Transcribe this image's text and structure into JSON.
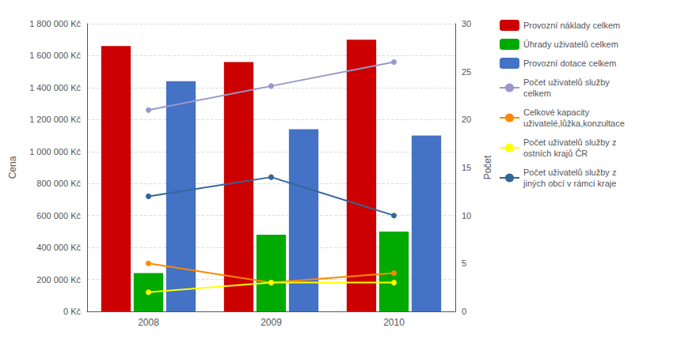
{
  "chart_data": {
    "type": "bar",
    "categories": [
      "2008",
      "2009",
      "2010"
    ],
    "ylabel": "Cena",
    "y2label": "Počet",
    "ylim": [
      0,
      1800000
    ],
    "yticks": [
      {
        "value": 0,
        "label": "0 Kč"
      },
      {
        "value": 200000,
        "label": "200 000 Kč"
      },
      {
        "value": 400000,
        "label": "400 000 Kč"
      },
      {
        "value": 600000,
        "label": "600 000 Kč"
      },
      {
        "value": 800000,
        "label": "800 000 Kč"
      },
      {
        "value": 1000000,
        "label": "1 000 000 Kč"
      },
      {
        "value": 1200000,
        "label": "1 200 000 Kč"
      },
      {
        "value": 1400000,
        "label": "1 400 000 Kč"
      },
      {
        "value": 1600000,
        "label": "1 600 000 Kč"
      },
      {
        "value": 1800000,
        "label": "1 800 000 Kč"
      }
    ],
    "y2lim": [
      0,
      30
    ],
    "y2ticks": [
      0,
      5,
      10,
      15,
      20,
      25,
      30
    ],
    "grid": true,
    "legend": "right",
    "series": [
      {
        "name": "Provozní náklady celkem",
        "type": "bar",
        "color": "#CC0000",
        "values": [
          1660000,
          1560000,
          1700000
        ]
      },
      {
        "name": "Úhrady uživatelů celkem",
        "type": "bar",
        "color": "#00AA00",
        "values": [
          240000,
          480000,
          500000
        ]
      },
      {
        "name": "Provozní dotace celkem",
        "type": "bar",
        "color": "#4472C4",
        "values": [
          1440000,
          1140000,
          1100000
        ]
      },
      {
        "name": "Počet uživatelů služby\ncelkem",
        "type": "line",
        "axis": "y2",
        "marker": "circle",
        "color": "#9999CC",
        "values": [
          21,
          23.5,
          26
        ]
      },
      {
        "name": "Celkové kapacity\nuživatelé,lůžka,konzultace",
        "type": "line",
        "axis": "y2",
        "marker": "circle",
        "color": "#FF8800",
        "values": [
          5,
          3,
          4
        ]
      },
      {
        "name": "Počet uživatelů služby z\nostních krajů ČR",
        "type": "line",
        "axis": "y2",
        "marker": "circle",
        "color": "#FFFF00",
        "values": [
          2,
          3,
          3
        ]
      },
      {
        "name": "Počet uživatelů služby z\njiných obcí v rámci kraje",
        "type": "line",
        "axis": "y2",
        "marker": "circle",
        "color": "#336699",
        "values": [
          12,
          14,
          10
        ]
      }
    ]
  }
}
